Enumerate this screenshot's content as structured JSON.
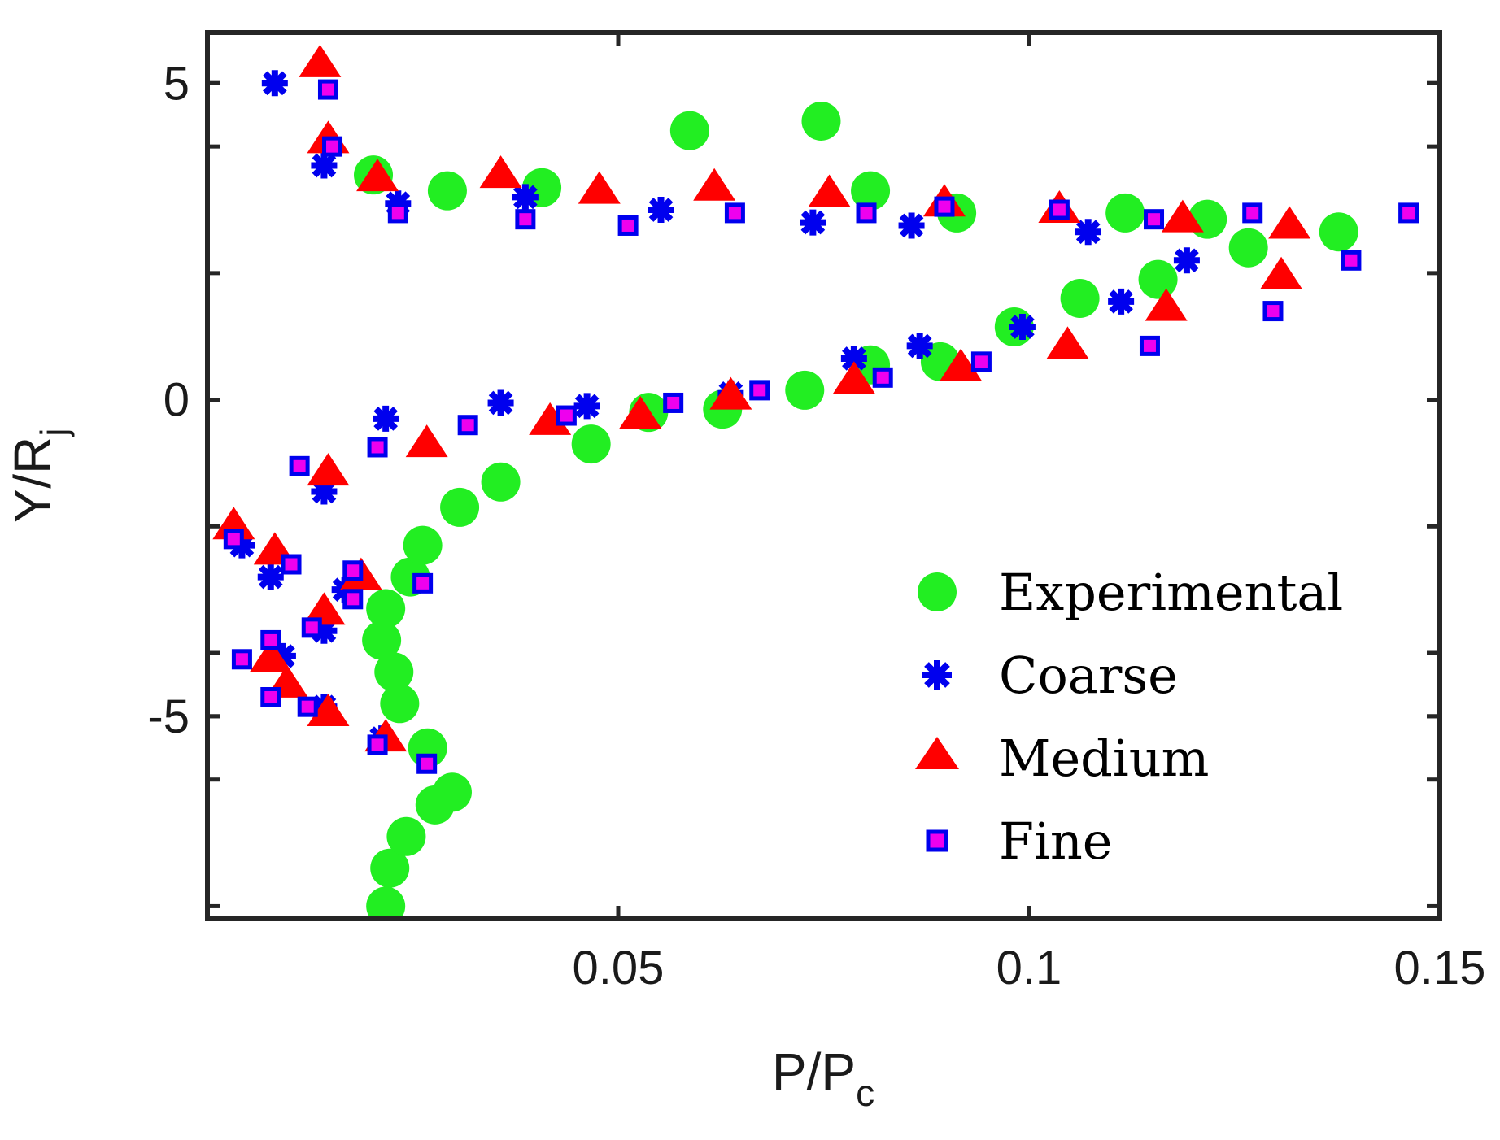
{
  "chart_data": {
    "type": "scatter",
    "xlabel_main": "P/P",
    "xlabel_sub": "c",
    "ylabel_main": "Y/R",
    "ylabel_sub": "j",
    "xlim": [
      0.0,
      0.15
    ],
    "ylim": [
      -8.2,
      5.8
    ],
    "xticks": [
      0.05,
      0.1,
      0.15
    ],
    "xtick_labels": [
      "0.05",
      "0.1",
      "0.15"
    ],
    "yticks": [
      -5,
      0,
      5
    ],
    "ytick_labels": [
      "-5",
      "0",
      "5"
    ],
    "grid": false,
    "legend_position": "bottom-right",
    "series": [
      {
        "name": "Experimental",
        "marker": "circle",
        "color": "#22ee22",
        "points": [
          [
            0.0217,
            -8.0
          ],
          [
            0.0222,
            -7.4
          ],
          [
            0.0242,
            -6.9
          ],
          [
            0.0277,
            -6.4
          ],
          [
            0.0298,
            -6.2
          ],
          [
            0.0268,
            -5.5
          ],
          [
            0.0234,
            -4.8
          ],
          [
            0.0227,
            -4.3
          ],
          [
            0.0212,
            -3.8
          ],
          [
            0.0217,
            -3.3
          ],
          [
            0.0247,
            -2.8
          ],
          [
            0.0262,
            -2.3
          ],
          [
            0.0307,
            -1.7
          ],
          [
            0.0357,
            -1.3
          ],
          [
            0.0467,
            -0.7
          ],
          [
            0.0537,
            -0.2
          ],
          [
            0.0627,
            -0.15
          ],
          [
            0.0727,
            0.15
          ],
          [
            0.0807,
            0.55
          ],
          [
            0.0892,
            0.6
          ],
          [
            0.0982,
            1.15
          ],
          [
            0.1062,
            1.6
          ],
          [
            0.1157,
            1.9
          ],
          [
            0.1267,
            2.4
          ],
          [
            0.0202,
            3.55
          ],
          [
            0.0292,
            3.3
          ],
          [
            0.0407,
            3.35
          ],
          [
            0.0587,
            4.25
          ],
          [
            0.0747,
            4.4
          ],
          [
            0.0807,
            3.3
          ],
          [
            0.0912,
            2.95
          ],
          [
            0.1117,
            2.95
          ],
          [
            0.1217,
            2.85
          ],
          [
            0.1377,
            2.65
          ]
        ]
      },
      {
        "name": "Coarse",
        "marker": "asterisk",
        "color": "#0000ee",
        "points": [
          [
            0.0082,
            5.0
          ],
          [
            0.0142,
            3.7
          ],
          [
            0.0232,
            3.1
          ],
          [
            0.0387,
            3.2
          ],
          [
            0.0552,
            3.0
          ],
          [
            0.0737,
            2.8
          ],
          [
            0.0857,
            2.75
          ],
          [
            0.1072,
            2.65
          ],
          [
            0.1192,
            2.2
          ],
          [
            0.1112,
            1.55
          ],
          [
            0.0992,
            1.15
          ],
          [
            0.0867,
            0.85
          ],
          [
            0.0787,
            0.65
          ],
          [
            0.0637,
            0.1
          ],
          [
            0.0462,
            -0.1
          ],
          [
            0.0357,
            -0.05
          ],
          [
            0.0217,
            -0.3
          ],
          [
            0.0142,
            -1.45
          ],
          [
            0.0042,
            -2.3
          ],
          [
            0.0077,
            -2.8
          ],
          [
            0.0167,
            -3.0
          ],
          [
            0.0142,
            -3.65
          ],
          [
            0.0092,
            -4.05
          ],
          [
            0.0142,
            -4.85
          ],
          [
            0.0212,
            -5.35
          ]
        ]
      },
      {
        "name": "Medium",
        "marker": "triangle",
        "color": "#ff0000",
        "points": [
          [
            0.0137,
            5.3
          ],
          [
            0.0147,
            4.1
          ],
          [
            0.0207,
            3.5
          ],
          [
            0.0357,
            3.55
          ],
          [
            0.0477,
            3.3
          ],
          [
            0.0617,
            3.35
          ],
          [
            0.0757,
            3.25
          ],
          [
            0.0897,
            3.1
          ],
          [
            0.1037,
            3.0
          ],
          [
            0.1187,
            2.85
          ],
          [
            0.1317,
            2.75
          ],
          [
            0.1307,
            1.95
          ],
          [
            0.1167,
            1.45
          ],
          [
            0.1047,
            0.85
          ],
          [
            0.0917,
            0.5
          ],
          [
            0.0787,
            0.3
          ],
          [
            0.0637,
            0.05
          ],
          [
            0.0527,
            -0.25
          ],
          [
            0.0417,
            -0.35
          ],
          [
            0.0267,
            -0.7
          ],
          [
            0.0147,
            -1.15
          ],
          [
            0.0032,
            -2.0
          ],
          [
            0.0082,
            -2.4
          ],
          [
            0.0187,
            -2.8
          ],
          [
            0.0142,
            -3.35
          ],
          [
            0.0077,
            -4.1
          ],
          [
            0.0097,
            -4.5
          ],
          [
            0.0147,
            -4.95
          ],
          [
            0.0217,
            -5.35
          ]
        ]
      },
      {
        "name": "Fine",
        "marker": "square",
        "color": "#ee00ee",
        "points": [
          [
            0.0147,
            4.9
          ],
          [
            0.0152,
            4.0
          ],
          [
            0.0232,
            2.95
          ],
          [
            0.0387,
            2.85
          ],
          [
            0.0512,
            2.75
          ],
          [
            0.0642,
            2.95
          ],
          [
            0.0802,
            2.95
          ],
          [
            0.0897,
            3.05
          ],
          [
            0.1037,
            3.0
          ],
          [
            0.1152,
            2.85
          ],
          [
            0.1272,
            2.95
          ],
          [
            0.1462,
            2.95
          ],
          [
            0.1392,
            2.2
          ],
          [
            0.1297,
            1.4
          ],
          [
            0.1147,
            0.85
          ],
          [
            0.0942,
            0.6
          ],
          [
            0.0822,
            0.35
          ],
          [
            0.0672,
            0.15
          ],
          [
            0.0567,
            -0.05
          ],
          [
            0.0437,
            -0.25
          ],
          [
            0.0317,
            -0.4
          ],
          [
            0.0207,
            -0.75
          ],
          [
            0.0112,
            -1.05
          ],
          [
            0.0032,
            -2.2
          ],
          [
            0.0102,
            -2.6
          ],
          [
            0.0177,
            -2.7
          ],
          [
            0.0262,
            -2.9
          ],
          [
            0.0177,
            -3.15
          ],
          [
            0.0127,
            -3.6
          ],
          [
            0.0077,
            -3.8
          ],
          [
            0.0042,
            -4.1
          ],
          [
            0.0077,
            -4.7
          ],
          [
            0.0122,
            -4.85
          ],
          [
            0.0207,
            -5.45
          ],
          [
            0.0267,
            -5.75
          ]
        ]
      }
    ]
  }
}
